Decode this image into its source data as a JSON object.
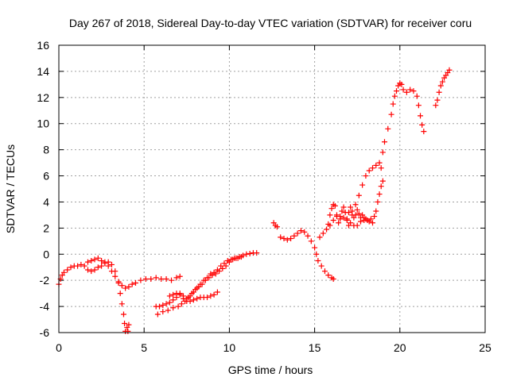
{
  "chart_data": {
    "type": "scatter",
    "title": "Day 267 of 2018, Sidereal Day-to-day VTEC variation (SDTVAR) for receiver coru",
    "xlabel": "GPS time / hours",
    "ylabel": "SDTVAR / TECUs",
    "xlim": [
      0,
      25
    ],
    "ylim": [
      -6,
      16
    ],
    "xticks": [
      0,
      5,
      10,
      15,
      20,
      25
    ],
    "yticks": [
      -6,
      -4,
      -2,
      0,
      2,
      4,
      6,
      8,
      10,
      12,
      14,
      16
    ],
    "grid": true,
    "marker": "+",
    "color": "#ff0000",
    "series": [
      {
        "points": [
          [
            0.0,
            -2.3
          ],
          [
            0.1,
            -1.9
          ],
          [
            0.2,
            -1.6
          ],
          [
            0.3,
            -1.4
          ],
          [
            0.5,
            -1.2
          ],
          [
            0.7,
            -1.0
          ],
          [
            0.9,
            -0.9
          ],
          [
            1.1,
            -0.9
          ],
          [
            1.3,
            -0.8
          ],
          [
            1.5,
            -0.9
          ],
          [
            1.7,
            -1.2
          ],
          [
            1.9,
            -1.3
          ],
          [
            2.1,
            -1.2
          ],
          [
            2.3,
            -1.0
          ],
          [
            2.5,
            -0.9
          ],
          [
            2.7,
            -0.7
          ],
          [
            2.9,
            -0.6
          ],
          [
            3.1,
            -0.8
          ],
          [
            3.3,
            -1.3
          ],
          [
            3.5,
            -2.2
          ],
          [
            3.6,
            -3.0
          ],
          [
            3.7,
            -3.8
          ],
          [
            3.8,
            -4.6
          ],
          [
            3.85,
            -5.3
          ],
          [
            3.9,
            -5.9
          ],
          [
            4.0,
            -5.6
          ],
          [
            4.05,
            -5.9
          ],
          [
            4.1,
            -5.4
          ]
        ]
      },
      {
        "points": [
          [
            1.7,
            -0.6
          ],
          [
            1.9,
            -0.5
          ],
          [
            2.1,
            -0.4
          ],
          [
            2.3,
            -0.3
          ],
          [
            2.5,
            -0.5
          ],
          [
            2.7,
            -0.6
          ],
          [
            2.9,
            -0.9
          ],
          [
            3.1,
            -1.3
          ],
          [
            3.3,
            -1.7
          ],
          [
            3.5,
            -2.1
          ],
          [
            3.7,
            -2.4
          ],
          [
            3.9,
            -2.6
          ],
          [
            4.1,
            -2.5
          ],
          [
            4.3,
            -2.3
          ],
          [
            4.5,
            -2.2
          ],
          [
            4.8,
            -2.0
          ],
          [
            5.1,
            -1.9
          ],
          [
            5.4,
            -1.9
          ],
          [
            5.7,
            -1.8
          ],
          [
            6.0,
            -1.9
          ],
          [
            6.3,
            -1.9
          ],
          [
            6.6,
            -2.0
          ],
          [
            6.9,
            -1.8
          ],
          [
            7.1,
            -1.7
          ]
        ]
      },
      {
        "points": [
          [
            5.7,
            -4.0
          ],
          [
            5.9,
            -4.0
          ],
          [
            6.1,
            -3.9
          ],
          [
            6.3,
            -3.8
          ],
          [
            6.5,
            -3.7
          ],
          [
            6.7,
            -3.5
          ],
          [
            6.9,
            -3.3
          ],
          [
            7.1,
            -3.1
          ],
          [
            7.3,
            -3.4
          ],
          [
            7.5,
            -3.6
          ],
          [
            7.7,
            -3.6
          ],
          [
            7.9,
            -3.5
          ],
          [
            8.1,
            -3.4
          ],
          [
            8.3,
            -3.3
          ],
          [
            8.5,
            -3.3
          ],
          [
            8.7,
            -3.3
          ],
          [
            8.9,
            -3.2
          ],
          [
            9.1,
            -3.1
          ],
          [
            9.3,
            -2.9
          ]
        ]
      },
      {
        "points": [
          [
            5.8,
            -4.6
          ],
          [
            6.1,
            -4.4
          ],
          [
            6.4,
            -4.3
          ],
          [
            6.7,
            -4.1
          ],
          [
            7.0,
            -4.0
          ],
          [
            7.2,
            -3.8
          ],
          [
            7.4,
            -3.6
          ],
          [
            7.6,
            -3.3
          ],
          [
            7.8,
            -3.0
          ],
          [
            8.0,
            -2.7
          ],
          [
            8.2,
            -2.5
          ],
          [
            8.4,
            -2.3
          ],
          [
            8.6,
            -2.0
          ],
          [
            8.8,
            -1.8
          ],
          [
            9.0,
            -1.6
          ],
          [
            9.2,
            -1.5
          ],
          [
            9.4,
            -1.3
          ],
          [
            9.6,
            -1.1
          ],
          [
            9.8,
            -0.9
          ],
          [
            10.0,
            -0.6
          ],
          [
            10.2,
            -0.4
          ],
          [
            10.4,
            -0.3
          ],
          [
            10.6,
            -0.2
          ],
          [
            10.8,
            -0.1
          ],
          [
            11.0,
            0.0
          ],
          [
            11.2,
            0.05
          ],
          [
            11.4,
            0.1
          ],
          [
            11.6,
            0.1
          ]
        ]
      },
      {
        "points": [
          [
            6.5,
            -3.2
          ],
          [
            6.7,
            -3.1
          ],
          [
            6.9,
            -3.0
          ],
          [
            7.1,
            -3.0
          ],
          [
            7.3,
            -3.2
          ],
          [
            7.5,
            -3.4
          ],
          [
            7.7,
            -3.2
          ],
          [
            7.9,
            -2.9
          ],
          [
            8.1,
            -2.6
          ],
          [
            8.3,
            -2.3
          ],
          [
            8.5,
            -2.0
          ],
          [
            8.7,
            -1.8
          ],
          [
            8.9,
            -1.5
          ],
          [
            9.1,
            -1.4
          ],
          [
            9.3,
            -1.2
          ],
          [
            9.5,
            -0.9
          ],
          [
            9.7,
            -0.7
          ],
          [
            9.9,
            -0.5
          ],
          [
            10.1,
            -0.4
          ],
          [
            10.3,
            -0.3
          ],
          [
            10.5,
            -0.3
          ],
          [
            10.7,
            -0.2
          ]
        ]
      },
      {
        "points": [
          [
            12.6,
            2.4
          ],
          [
            12.7,
            2.2
          ],
          [
            12.8,
            2.1
          ]
        ]
      },
      {
        "points": [
          [
            13.0,
            1.3
          ],
          [
            13.2,
            1.2
          ],
          [
            13.4,
            1.1
          ],
          [
            13.6,
            1.2
          ],
          [
            13.8,
            1.4
          ],
          [
            14.0,
            1.6
          ],
          [
            14.2,
            1.8
          ],
          [
            14.4,
            1.7
          ],
          [
            14.6,
            1.4
          ],
          [
            14.8,
            1.0
          ],
          [
            15.0,
            0.5
          ],
          [
            15.1,
            0.0
          ],
          [
            15.2,
            -0.5
          ],
          [
            15.4,
            -0.9
          ],
          [
            15.6,
            -1.3
          ],
          [
            15.8,
            -1.6
          ],
          [
            16.0,
            -1.8
          ],
          [
            16.1,
            -1.9
          ]
        ]
      },
      {
        "points": [
          [
            15.3,
            1.3
          ],
          [
            15.5,
            1.6
          ],
          [
            15.7,
            1.9
          ],
          [
            15.9,
            2.2
          ],
          [
            16.1,
            2.6
          ],
          [
            16.3,
            2.9
          ],
          [
            16.5,
            2.9
          ],
          [
            16.7,
            2.8
          ],
          [
            16.9,
            2.6
          ],
          [
            17.1,
            2.4
          ],
          [
            17.3,
            2.2
          ],
          [
            17.5,
            2.2
          ],
          [
            17.7,
            2.5
          ],
          [
            17.9,
            2.6
          ],
          [
            18.1,
            2.6
          ],
          [
            18.3,
            2.7
          ],
          [
            18.5,
            2.9
          ],
          [
            18.6,
            3.3
          ],
          [
            18.7,
            4.0
          ],
          [
            18.8,
            4.6
          ],
          [
            18.9,
            5.2
          ],
          [
            19.0,
            5.6
          ]
        ]
      },
      {
        "points": [
          [
            15.8,
            2.3
          ],
          [
            15.9,
            3.0
          ],
          [
            16.0,
            3.5
          ],
          [
            16.1,
            3.8
          ],
          [
            16.2,
            3.7
          ],
          [
            16.3,
            3.0
          ],
          [
            16.4,
            2.4
          ],
          [
            16.5,
            2.7
          ],
          [
            16.6,
            3.3
          ],
          [
            16.7,
            3.6
          ],
          [
            16.8,
            3.2
          ],
          [
            16.9,
            2.7
          ],
          [
            17.0,
            3.2
          ],
          [
            17.1,
            3.6
          ],
          [
            17.2,
            3.3
          ],
          [
            17.3,
            2.8
          ],
          [
            17.4,
            3.0
          ],
          [
            17.5,
            3.4
          ],
          [
            17.6,
            3.1
          ],
          [
            17.7,
            2.8
          ],
          [
            17.8,
            3.0
          ],
          [
            17.9,
            2.8
          ],
          [
            18.0,
            2.7
          ],
          [
            18.2,
            2.5
          ],
          [
            18.4,
            2.4
          ]
        ]
      },
      {
        "points": [
          [
            17.0,
            2.2
          ],
          [
            17.2,
            3.0
          ],
          [
            17.4,
            3.8
          ],
          [
            17.6,
            4.5
          ],
          [
            17.8,
            5.3
          ],
          [
            18.0,
            6.0
          ],
          [
            18.2,
            6.4
          ],
          [
            18.4,
            6.6
          ],
          [
            18.6,
            6.8
          ],
          [
            18.8,
            7.0
          ],
          [
            18.9,
            6.6
          ],
          [
            19.0,
            7.8
          ],
          [
            19.1,
            8.6
          ],
          [
            19.3,
            9.6
          ],
          [
            19.5,
            10.7
          ],
          [
            19.6,
            11.5
          ],
          [
            19.7,
            12.1
          ],
          [
            19.8,
            12.5
          ],
          [
            19.9,
            12.9
          ],
          [
            20.0,
            13.1
          ],
          [
            20.1,
            13.0
          ],
          [
            20.2,
            12.6
          ],
          [
            20.4,
            12.4
          ],
          [
            20.6,
            12.6
          ],
          [
            20.8,
            12.5
          ],
          [
            21.0,
            12.1
          ],
          [
            21.1,
            11.4
          ],
          [
            21.2,
            10.6
          ],
          [
            21.3,
            9.9
          ],
          [
            21.4,
            9.4
          ]
        ]
      },
      {
        "points": [
          [
            22.1,
            11.4
          ],
          [
            22.2,
            11.8
          ],
          [
            22.3,
            12.4
          ],
          [
            22.4,
            12.9
          ],
          [
            22.5,
            13.2
          ],
          [
            22.6,
            13.5
          ],
          [
            22.7,
            13.7
          ],
          [
            22.8,
            13.9
          ],
          [
            22.9,
            14.1
          ]
        ]
      }
    ]
  }
}
